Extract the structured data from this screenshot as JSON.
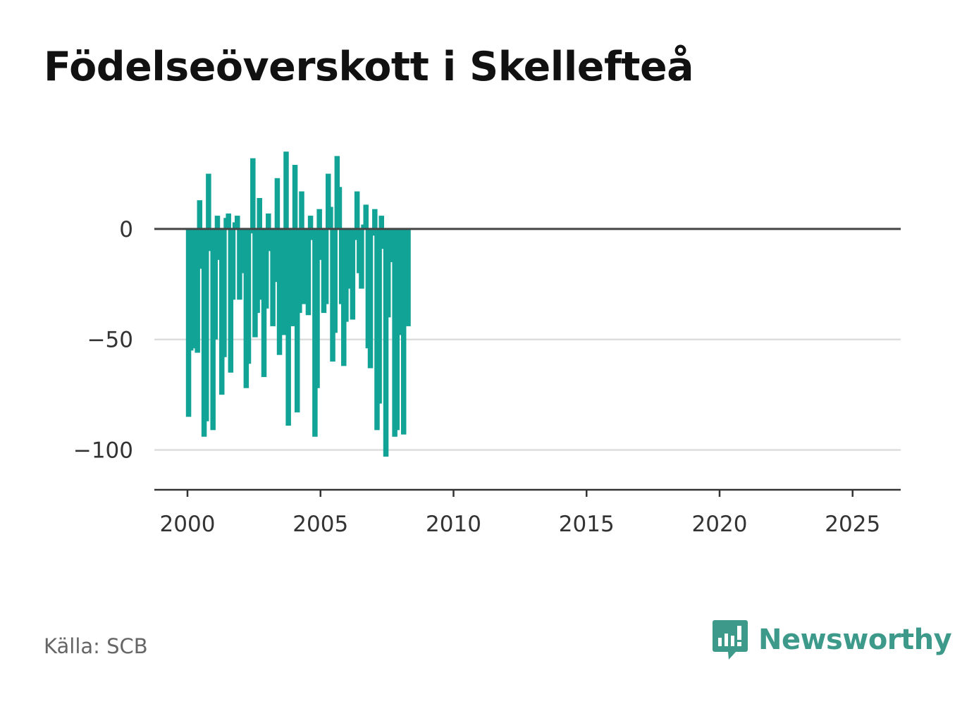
{
  "title": "Födelseöverskott i Skellefteå",
  "source": "Källa: SCB",
  "brand": "Newsworthy",
  "colors": {
    "bar": "#12a397",
    "zero_line": "#444444",
    "grid": "#dddddd",
    "axis": "#333333",
    "brand": "#3d9a8b"
  },
  "chart_data": {
    "type": "bar",
    "title": "Födelseöverskott i Skellefteå",
    "xlabel": "",
    "ylabel": "",
    "x_start": "2000-01",
    "x_interval": "month",
    "x_ticks": [
      "2000",
      "2005",
      "2010",
      "2015",
      "2020",
      "2025"
    ],
    "y_ticks": [
      0,
      -50,
      -100
    ],
    "y_tick_labels": [
      "0",
      "−50",
      "−100"
    ],
    "ylim": [
      -118,
      36
    ],
    "grid": true,
    "values": [
      -85,
      -55,
      -26,
      -54,
      -56,
      13,
      -18,
      -94,
      -87,
      25,
      -10,
      -91,
      -50,
      6,
      -14,
      -75,
      -58,
      5,
      7,
      -65,
      -32,
      3,
      6,
      -32,
      -20,
      -16,
      -72,
      -61,
      -2,
      32,
      -49,
      -38,
      14,
      -32,
      -67,
      -36,
      7,
      -10,
      -44,
      -24,
      23,
      -57,
      -23,
      -48,
      35,
      -89,
      -11,
      -44,
      29,
      -83,
      -38,
      17,
      -34,
      -25,
      -39,
      6,
      -5,
      -94,
      -72,
      9,
      -14,
      -38,
      -34,
      25,
      10,
      -60,
      -47,
      33,
      19,
      -34,
      -62,
      -42,
      -15,
      -27,
      -41,
      -5,
      17,
      -20,
      -27,
      2,
      11,
      -54,
      -63,
      -3,
      9,
      -91,
      -79,
      6,
      -9,
      -103,
      -40,
      -15,
      -3,
      -94,
      -91,
      -48,
      -28,
      -93,
      -16,
      -44
    ]
  }
}
